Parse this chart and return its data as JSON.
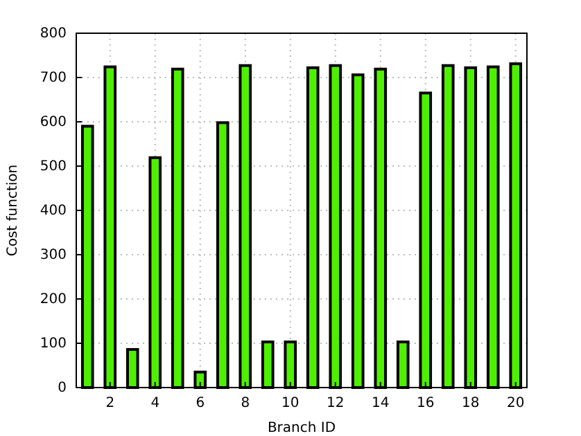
{
  "chart_data": {
    "type": "bar",
    "xlabel": "Branch ID",
    "ylabel": "Cost function",
    "x": [
      1,
      2,
      3,
      4,
      5,
      6,
      7,
      8,
      9,
      10,
      11,
      12,
      13,
      14,
      15,
      16,
      17,
      18,
      19,
      20
    ],
    "values": [
      590,
      724,
      86,
      519,
      719,
      35,
      598,
      727,
      103,
      103,
      722,
      727,
      706,
      719,
      103,
      665,
      727,
      722,
      724,
      731
    ],
    "color": "#4ef000",
    "xlim": [
      0.5,
      20.5
    ],
    "xticks": [
      2,
      4,
      6,
      8,
      10,
      12,
      14,
      16,
      18,
      20
    ],
    "ylim": [
      0,
      800
    ],
    "yticks": [
      0,
      100,
      200,
      300,
      400,
      500,
      600,
      700,
      800
    ],
    "grid": true
  }
}
